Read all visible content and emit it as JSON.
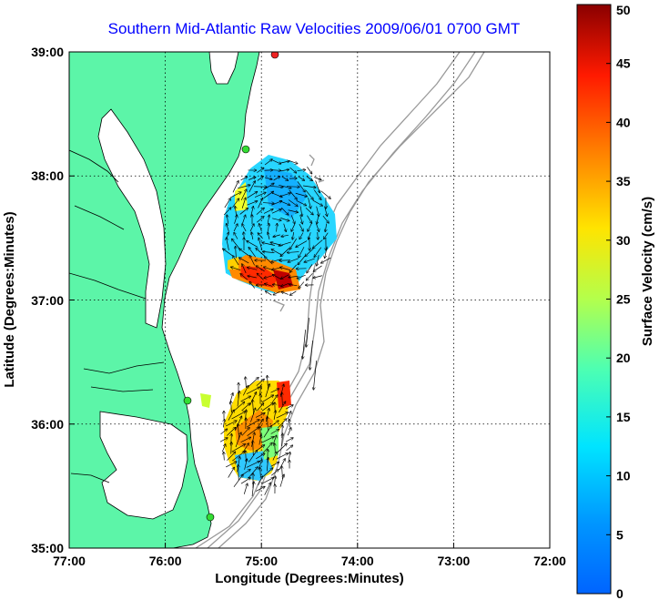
{
  "title": "Southern Mid-Atlantic Raw Velocities 2009/06/01 0700 GMT",
  "map": {
    "xlabel": "Longitude (Degrees:Minutes)",
    "ylabel": "Latitude (Degrees:Minutes)",
    "xticks": [
      "77:00",
      "76:00",
      "75:00",
      "74:00",
      "73:00",
      "72:00"
    ],
    "yticks": [
      "35:00",
      "36:00",
      "37:00",
      "38:00",
      "39:00"
    ],
    "land_color": "#5cf5a8",
    "gridlines": "dotted"
  },
  "colorbar": {
    "label": "Surface Velocity (cm/s)",
    "ticks": [
      "0",
      "5",
      "10",
      "15",
      "20",
      "25",
      "30",
      "35",
      "40",
      "45",
      "50"
    ],
    "range": [
      0,
      50
    ]
  }
}
